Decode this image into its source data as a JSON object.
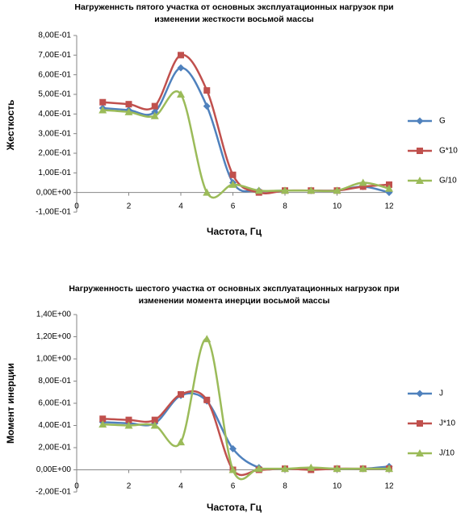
{
  "chart_data": [
    {
      "type": "line",
      "title": [
        "Нагруженнсть пятого участка от основных эксплуатационных  нагрузок при",
        "изменении жесткости  восьмой массы"
      ],
      "x_label": "Частота, Гц",
      "y_label": "Жесткость",
      "x": [
        1,
        2,
        3,
        4,
        5,
        6,
        7,
        8,
        9,
        10,
        11,
        12
      ],
      "xlim": [
        0,
        12
      ],
      "xticks": [
        0,
        2,
        4,
        6,
        8,
        10,
        12
      ],
      "ylim": [
        -0.1,
        0.8
      ],
      "yticks": [
        {
          "value": -0.1,
          "label": "-1,00E-01"
        },
        {
          "value": 0,
          "label": "0,00E+00"
        },
        {
          "value": 0.1,
          "label": "1,00E-01"
        },
        {
          "value": 0.2,
          "label": "2,00E-01"
        },
        {
          "value": 0.3,
          "label": "3,00E-01"
        },
        {
          "value": 0.4,
          "label": "4,00E-01"
        },
        {
          "value": 0.5,
          "label": "5,00E-01"
        },
        {
          "value": 0.6,
          "label": "6,00E-01"
        },
        {
          "value": 0.7,
          "label": "7,00E-01"
        },
        {
          "value": 0.8,
          "label": "8,00E-01"
        }
      ],
      "grid": false,
      "legend": "right",
      "series": [
        {
          "name": "G",
          "color": "#4F81BD",
          "marker": "diamond",
          "values": [
            0.43,
            0.42,
            0.41,
            0.635,
            0.44,
            0.05,
            0.01,
            0.01,
            0.01,
            0.01,
            0.03,
            0.0
          ]
        },
        {
          "name": "G*10",
          "color": "#C0504D",
          "marker": "square",
          "values": [
            0.46,
            0.45,
            0.44,
            0.7,
            0.52,
            0.09,
            0.0,
            0.01,
            0.01,
            0.01,
            0.03,
            0.04
          ]
        },
        {
          "name": "G/10",
          "color": "#9BBB59",
          "marker": "triangle",
          "values": [
            0.42,
            0.41,
            0.39,
            0.5,
            0.0,
            0.04,
            0.01,
            0.01,
            0.01,
            0.01,
            0.05,
            0.02
          ]
        }
      ]
    },
    {
      "type": "line",
      "title": [
        "Нагруженность  шестого участка  от основных  эксплуатационных  нагрузок при",
        "изменении момента инерции восьмой  массы"
      ],
      "x_label": "Частота, Гц",
      "y_label": "Момент инерции",
      "x": [
        1,
        2,
        3,
        4,
        5,
        6,
        7,
        8,
        9,
        10,
        11,
        12
      ],
      "xlim": [
        0,
        12
      ],
      "xticks": [
        0,
        2,
        4,
        6,
        8,
        10,
        12
      ],
      "ylim": [
        -0.2,
        1.4
      ],
      "yticks": [
        {
          "value": -0.2,
          "label": "-2,00E-01"
        },
        {
          "value": 0,
          "label": "0,00E+00"
        },
        {
          "value": 0.2,
          "label": "2,00E-01"
        },
        {
          "value": 0.4,
          "label": "4,00E-01"
        },
        {
          "value": 0.6,
          "label": "6,00E-01"
        },
        {
          "value": 0.8,
          "label": "8,00E-01"
        },
        {
          "value": 1.0,
          "label": "1,00E+00"
        },
        {
          "value": 1.2,
          "label": "1,20E+00"
        },
        {
          "value": 1.4,
          "label": "1,40E+00"
        }
      ],
      "grid": false,
      "legend": "right",
      "series": [
        {
          "name": "J",
          "color": "#4F81BD",
          "marker": "diamond",
          "values": [
            0.43,
            0.42,
            0.42,
            0.67,
            0.62,
            0.19,
            0.02,
            0.01,
            0.01,
            0.01,
            0.01,
            0.03
          ]
        },
        {
          "name": "J*10",
          "color": "#C0504D",
          "marker": "square",
          "values": [
            0.46,
            0.45,
            0.45,
            0.68,
            0.63,
            0.0,
            0.0,
            0.01,
            0.0,
            0.01,
            0.01,
            0.01
          ]
        },
        {
          "name": "J/10",
          "color": "#9BBB59",
          "marker": "triangle",
          "values": [
            0.41,
            0.4,
            0.4,
            0.25,
            1.18,
            0.0,
            0.01,
            0.01,
            0.02,
            0.01,
            0.01,
            0.01
          ]
        }
      ]
    }
  ]
}
